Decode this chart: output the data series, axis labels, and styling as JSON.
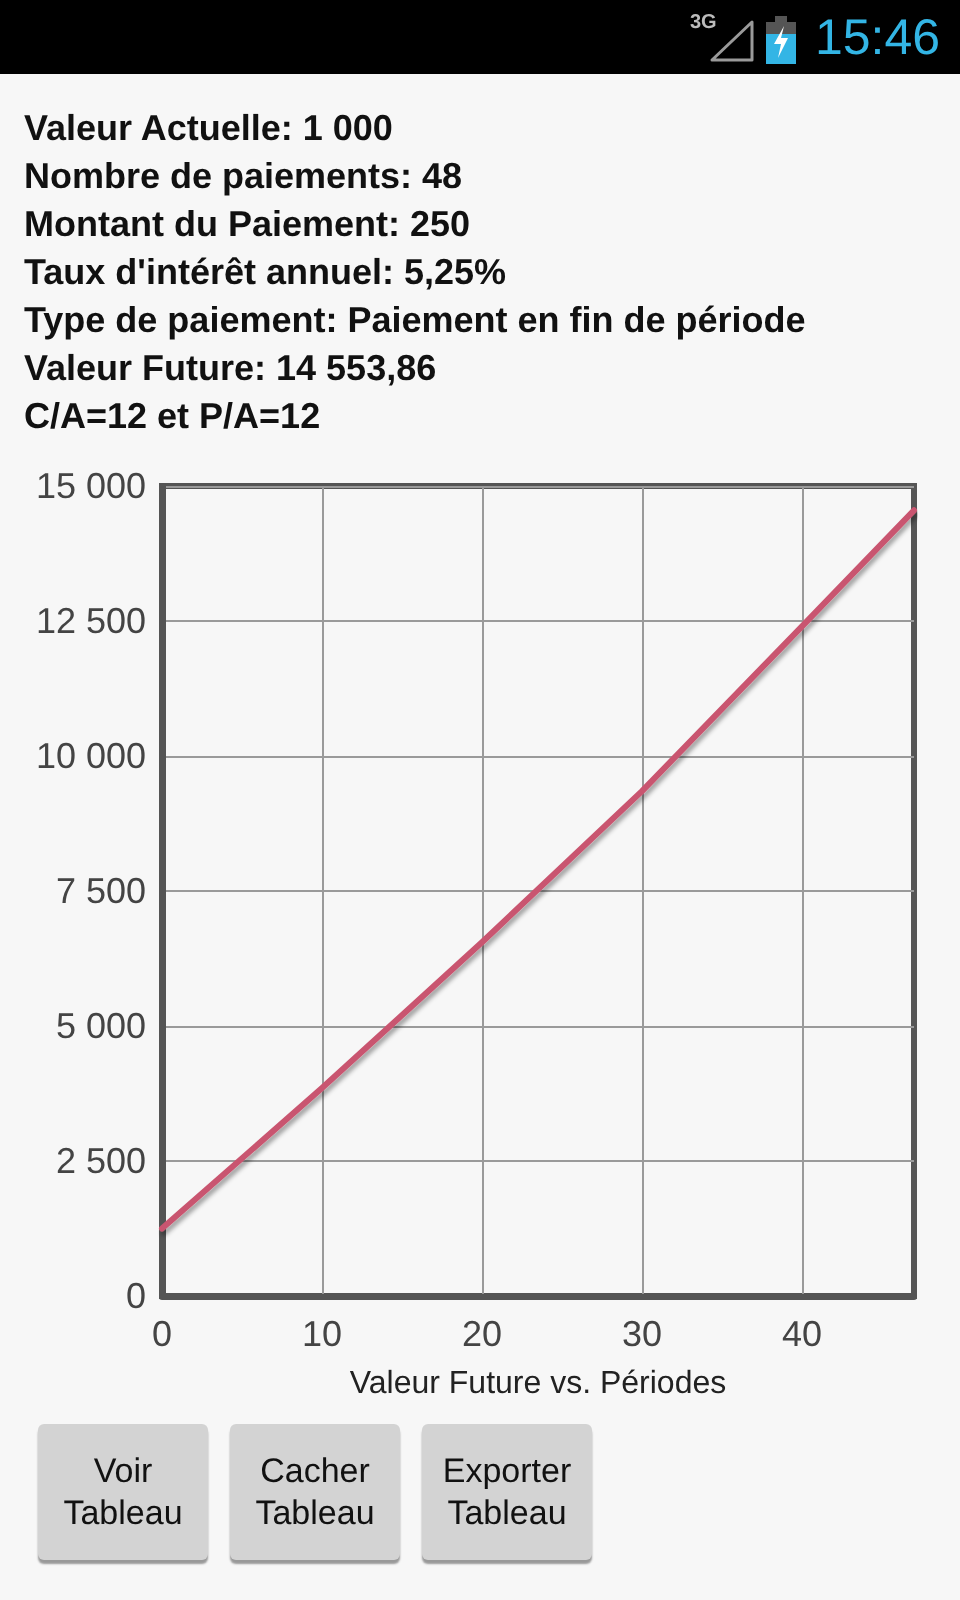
{
  "chart_data": {
    "type": "line",
    "xlabel": "Valeur Future vs. Périodes",
    "x": [
      0,
      10,
      20,
      30,
      40,
      47
    ],
    "series": [
      {
        "color": "#c9556f",
        "values": [
          1250,
          3850,
          6550,
          9350,
          12400,
          14550
        ]
      }
    ],
    "xlim": [
      0,
      47
    ],
    "xticks": [
      0,
      10,
      20,
      30,
      40
    ],
    "ylim": [
      0,
      15000
    ],
    "yticks": [
      0,
      {
        "value": 2500,
        "label": "2 500"
      },
      {
        "value": 5000,
        "label": "5 000"
      },
      {
        "value": 7500,
        "label": "7 500"
      },
      {
        "value": 10000,
        "label": "10 000"
      },
      {
        "value": 12500,
        "label": "12 500"
      },
      {
        "value": 15000,
        "label": "15 000"
      }
    ],
    "grid": true,
    "marker": "none",
    "line_style": "solid",
    "annotations": [
      "3G",
      "15:46",
      "Valeur Actuelle: 1 000",
      "Nombre de paiements: 48",
      "Montant du Paiement: 250",
      "Taux d'intérêt annuel: 5,25%",
      "Type de paiement: Paiement en fin de période",
      "Valeur Future: 14 553,86",
      "C/A=12 et P/A=12",
      "Voir Tableau",
      "Cacher Tableau",
      "Exporter Tableau"
    ]
  }
}
